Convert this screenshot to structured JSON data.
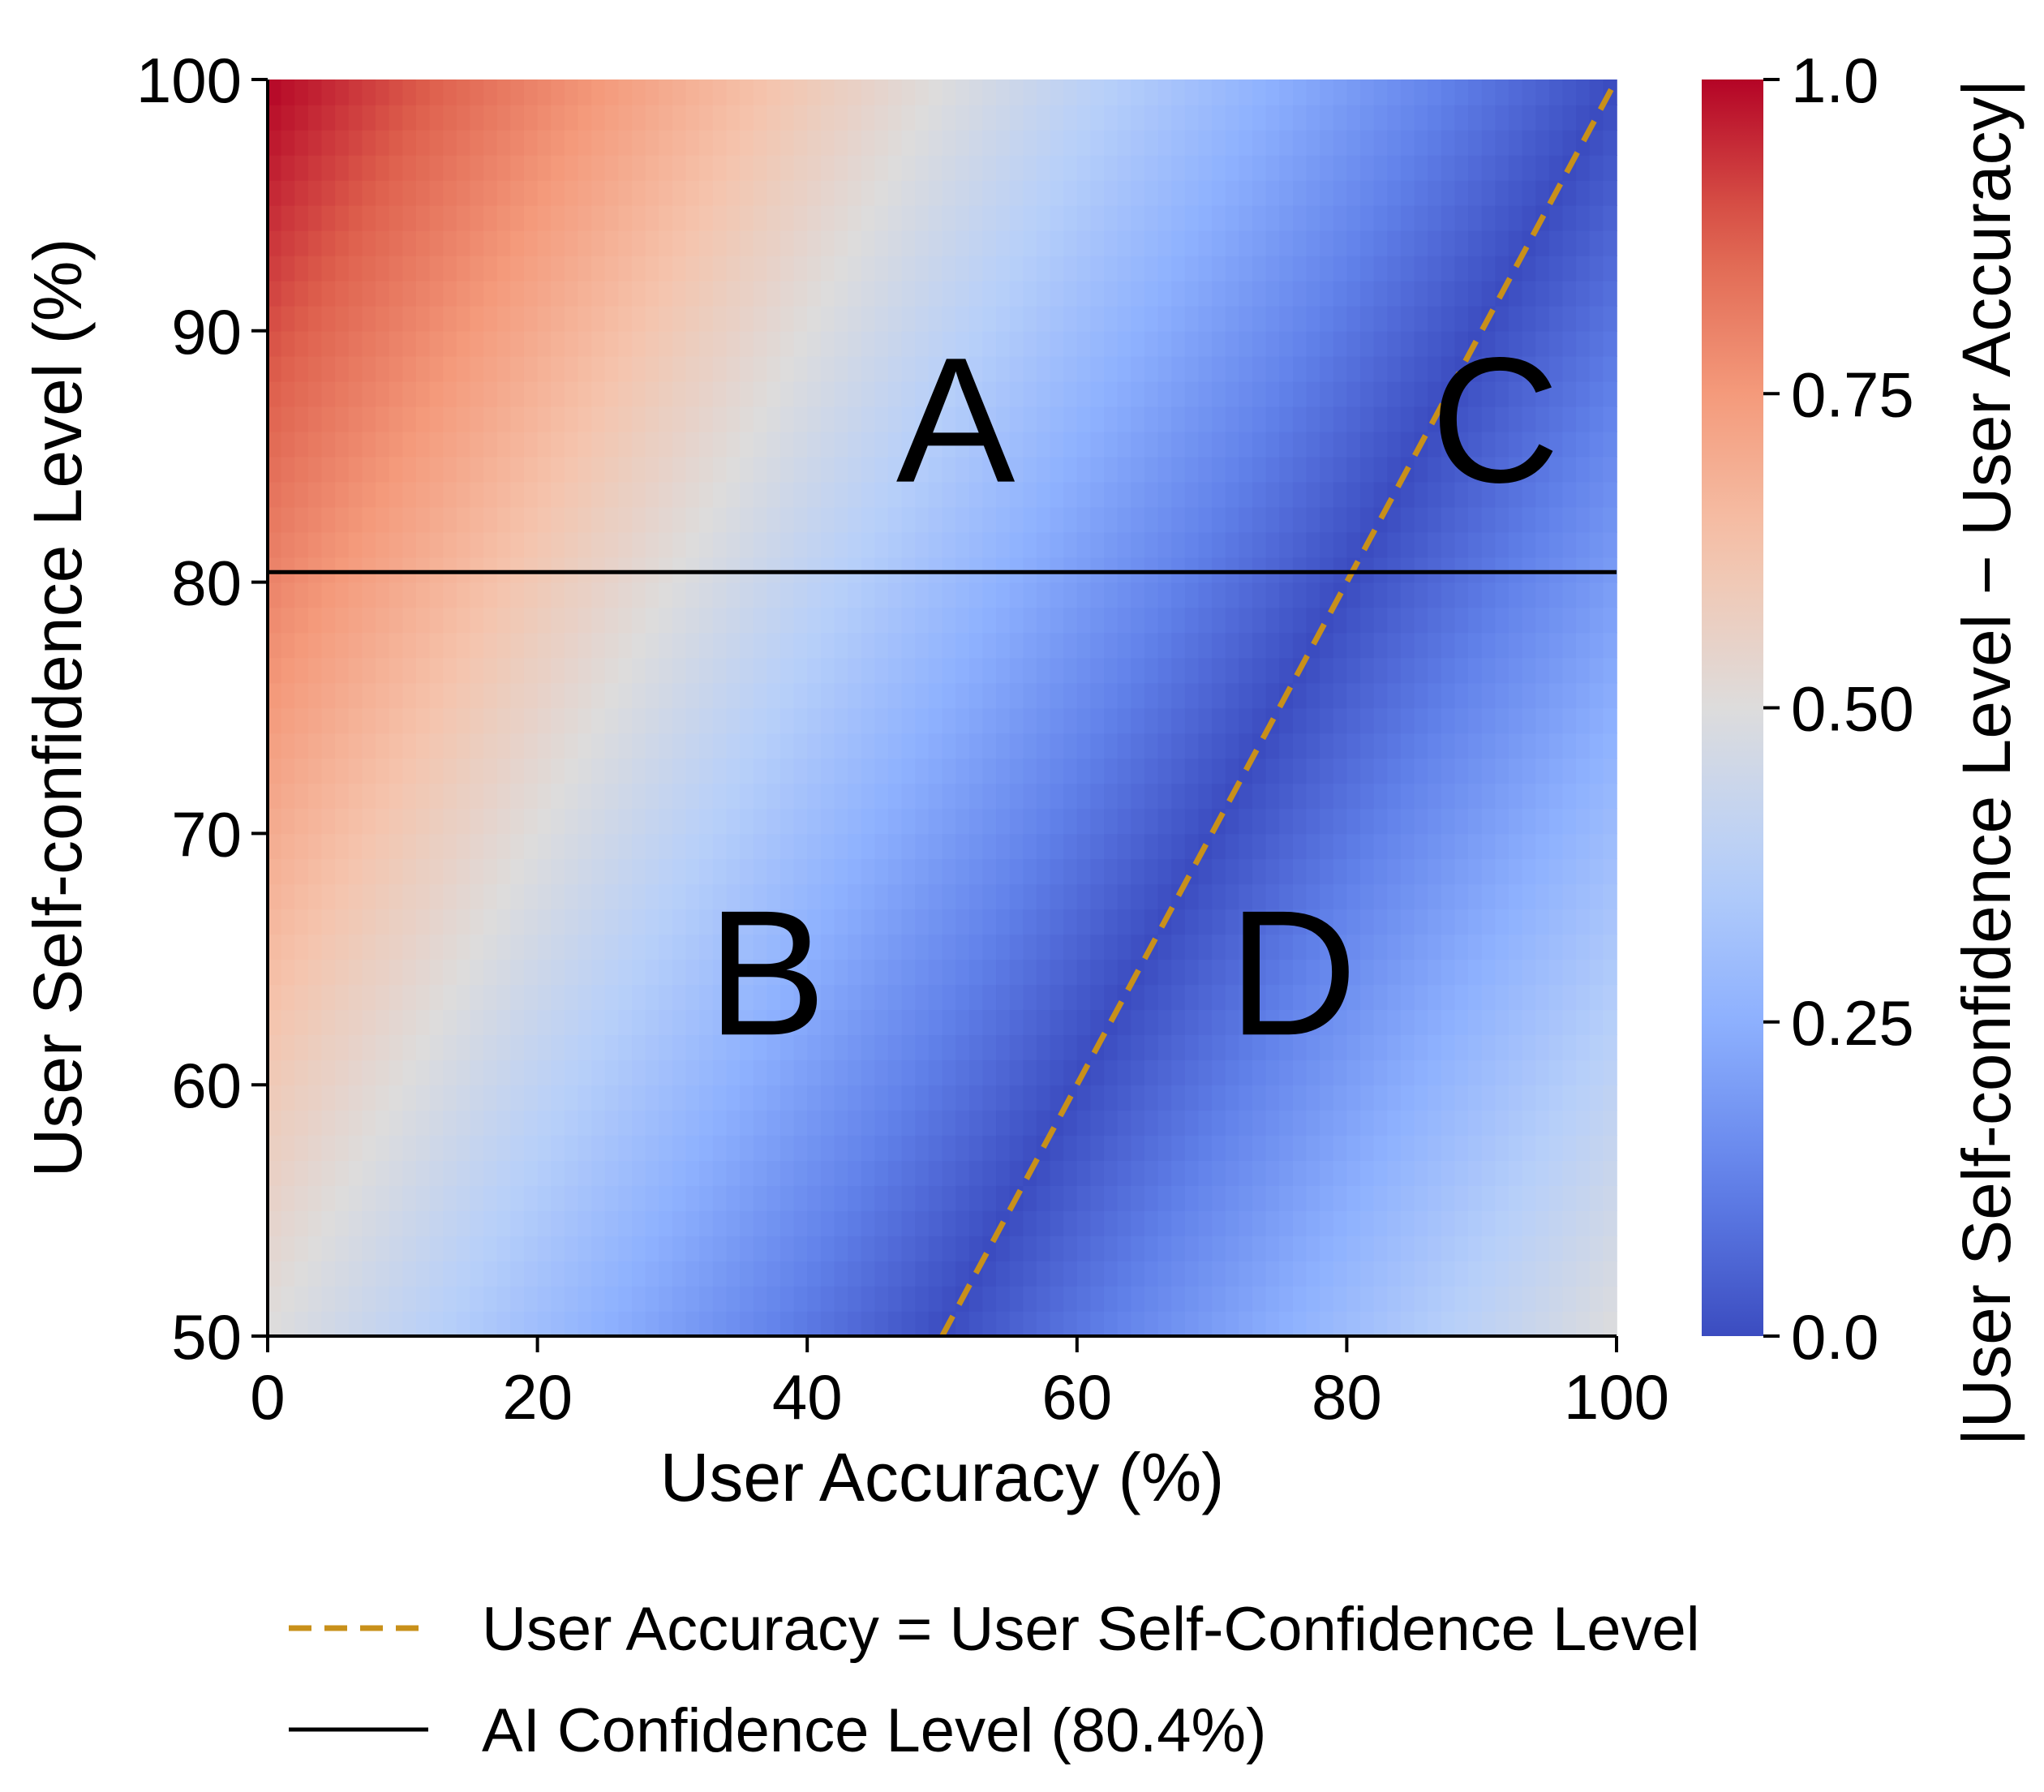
{
  "chart_data": {
    "type": "heatmap",
    "title": "",
    "xlabel": "User Accuracy (%)",
    "ylabel": "User Self-confidence Level (%)",
    "xlim": [
      0,
      100
    ],
    "ylim": [
      50,
      100
    ],
    "x_ticks": [
      0,
      20,
      40,
      60,
      80,
      100
    ],
    "y_ticks": [
      50,
      60,
      70,
      80,
      90,
      100
    ],
    "z_expression": "|User Self-confidence Level − User Accuracy|",
    "colormap": "coolwarm",
    "colors": {
      "low": "#3b4cc0",
      "mid": "#dddcdc",
      "high": "#b40426"
    },
    "colorbar": {
      "label": "|User Self-confidence Level − User Accuracy|",
      "range": [
        0.0,
        1.0
      ],
      "ticks": [
        0.0,
        0.25,
        0.5,
        0.75,
        1.0
      ],
      "tick_labels": [
        "0.0",
        "0.25",
        "0.50",
        "0.75",
        "1.0"
      ]
    },
    "lines": [
      {
        "name": "User Accuracy = User Self-Confidence Level",
        "style": "dashed",
        "color": "#c8901a",
        "points": [
          [
            50,
            50
          ],
          [
            100,
            100
          ]
        ]
      },
      {
        "name": "AI Confidence Level (80.4%)",
        "style": "solid",
        "color": "#000000",
        "y": 80.4
      }
    ],
    "annotations": [
      {
        "text": "A",
        "x": 51,
        "y": 84
      },
      {
        "text": "B",
        "x": 37,
        "y": 62
      },
      {
        "text": "C",
        "x": 91,
        "y": 84
      },
      {
        "text": "D",
        "x": 76,
        "y": 62
      }
    ],
    "legend": {
      "placement": "bottom",
      "entries": [
        "User Accuracy = User Self-Confidence Level",
        "AI Confidence Level (80.4%)"
      ]
    },
    "grid": false
  }
}
